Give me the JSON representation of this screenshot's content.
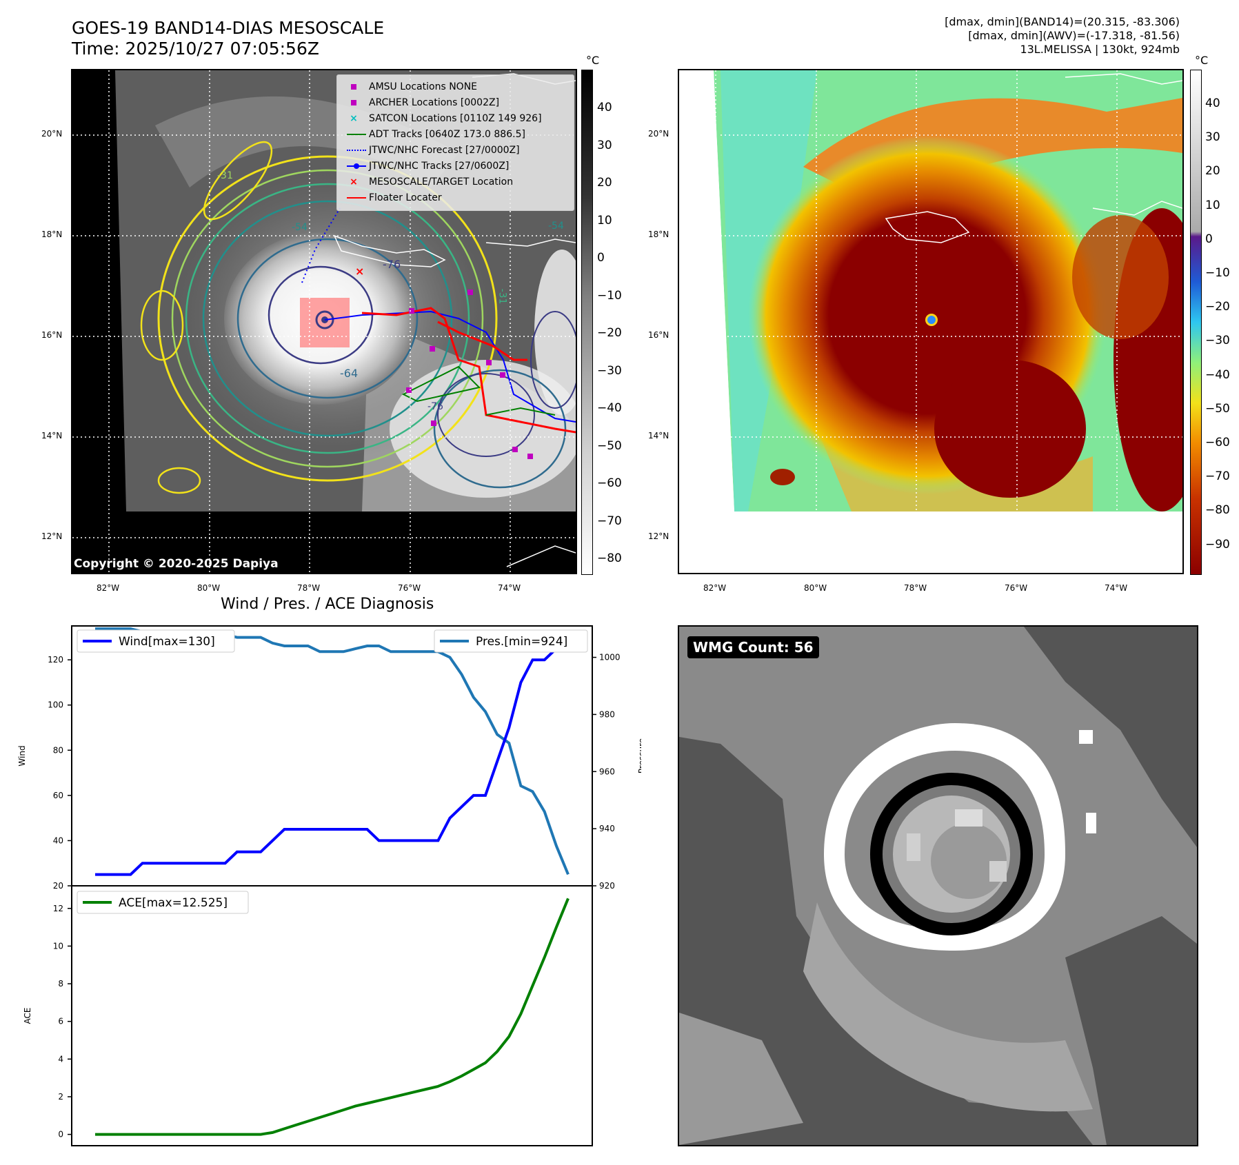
{
  "header": {
    "title_line1": "GOES-19 BAND14-DIAS MESOSCALE",
    "title_line2": "Time: 2025/10/27 07:05:56Z",
    "right_line1": "[dmax, dmin](BAND14)=(20.315, -83.306)",
    "right_line2": "[dmax, dmin](AWV)=(-17.318, -81.56)",
    "right_line3": "13L.MELISSA | 130kt, 924mb"
  },
  "map": {
    "lat_labels": [
      "20°N",
      "18°N",
      "16°N",
      "14°N",
      "12°N"
    ],
    "lon_labels": [
      "82°W",
      "80°W",
      "78°W",
      "76°W",
      "74°W"
    ],
    "copyright": "Copyright © 2020-2025 Dapiya",
    "contour_labels": [
      "-76",
      "-64",
      "-54",
      "-54",
      "-31",
      "-76",
      "-31"
    ],
    "legend": [
      {
        "label": "AMSU Locations NONE",
        "marker": "square",
        "color": "#bf00bf"
      },
      {
        "label": "ARCHER Locations [0002Z]",
        "marker": "square",
        "color": "#bf00bf"
      },
      {
        "label": "SATCON Locations [0110Z 149 926]",
        "marker": "x",
        "color": "#00bfbf"
      },
      {
        "label": "ADT Tracks [0640Z 173.0 886.5]",
        "marker": "line",
        "color": "#008000"
      },
      {
        "label": "JTWC/NHC Forecast [27/0000Z]",
        "marker": "dotted",
        "color": "#0000ff"
      },
      {
        "label": "JTWC/NHC Tracks [27/0600Z]",
        "marker": "line-dot",
        "color": "#0000ff"
      },
      {
        "label": "MESOSCALE/TARGET Location",
        "marker": "x",
        "color": "#ff0000"
      },
      {
        "label": "Floater Locater",
        "marker": "line",
        "color": "#ff0000"
      }
    ]
  },
  "colorbar_left": {
    "unit": "°C",
    "ticks": [
      "40",
      "30",
      "20",
      "10",
      "0",
      "−10",
      "−20",
      "−30",
      "−40",
      "−50",
      "−60",
      "−70",
      "−80"
    ]
  },
  "colorbar_right": {
    "unit": "°C",
    "ticks": [
      "40",
      "30",
      "20",
      "10",
      "0",
      "−10",
      "−20",
      "−30",
      "−40",
      "−50",
      "−60",
      "−70",
      "−80",
      "−90"
    ]
  },
  "wmg": {
    "label": "WMG Count: 56"
  },
  "chart_data": [
    {
      "type": "line",
      "title": "Wind / Pres. / ACE Diagnosis",
      "ylabel": "Wind",
      "ylim": [
        20,
        135
      ],
      "yticks": [
        "20",
        "40",
        "60",
        "80",
        "100",
        "120"
      ],
      "series": [
        {
          "name": "Wind[max=130]",
          "color": "#0000ff",
          "values": [
            25,
            25,
            25,
            25,
            30,
            30,
            30,
            30,
            30,
            30,
            30,
            30,
            35,
            35,
            35,
            40,
            45,
            45,
            45,
            45,
            45,
            45,
            45,
            45,
            40,
            40,
            40,
            40,
            40,
            40,
            50,
            55,
            60,
            60,
            75,
            90,
            110,
            120,
            120,
            125,
            130
          ]
        }
      ]
    },
    {
      "type": "line",
      "ylabel": "Pressure",
      "ylim": [
        920,
        1011
      ],
      "yticks": [
        "920",
        "940",
        "960",
        "980",
        "1000"
      ],
      "series": [
        {
          "name": "Pres.[min=924]",
          "color": "#1f77b4",
          "values": [
            1010,
            1010,
            1010,
            1010,
            1009,
            1009,
            1008,
            1008,
            1008,
            1008,
            1008,
            1008,
            1007,
            1007,
            1007,
            1005,
            1004,
            1004,
            1004,
            1002,
            1002,
            1002,
            1003,
            1004,
            1004,
            1002,
            1002,
            1002,
            1002,
            1002,
            1000,
            994,
            986,
            981,
            973,
            970,
            955,
            953,
            946,
            934,
            924
          ]
        }
      ]
    },
    {
      "type": "area",
      "ylabel": "ACE",
      "ylim": [
        -0.6,
        13.2
      ],
      "yticks": [
        "0",
        "2",
        "4",
        "6",
        "8",
        "10",
        "12"
      ],
      "series": [
        {
          "name": "ACE[max=12.525]",
          "color": "#008000",
          "values": [
            0,
            0,
            0,
            0,
            0,
            0,
            0,
            0,
            0,
            0,
            0,
            0,
            0,
            0,
            0,
            0.1,
            0.3,
            0.5,
            0.7,
            0.9,
            1.1,
            1.3,
            1.5,
            1.65,
            1.8,
            1.95,
            2.1,
            2.25,
            2.4,
            2.55,
            2.8,
            3.1,
            3.45,
            3.8,
            4.4,
            5.2,
            6.4,
            7.9,
            9.4,
            11.0,
            12.525
          ]
        }
      ]
    }
  ]
}
